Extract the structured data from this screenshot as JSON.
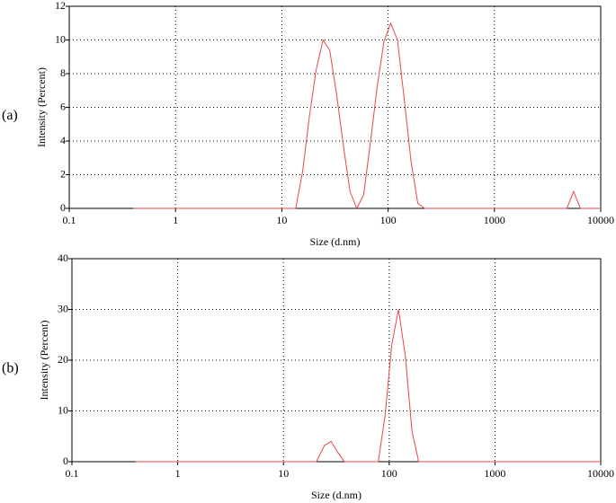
{
  "chart_data": [
    {
      "type": "line",
      "panel_label": "(a)",
      "x_label": "Size (d.nm)",
      "y_label": "Intensity (Percent)",
      "x": [
        0.4,
        10,
        13.5,
        15.7,
        18.2,
        21,
        24.4,
        28.2,
        32.7,
        37.8,
        43.8,
        50.7,
        58.8,
        68.1,
        78.8,
        91.3,
        105.7,
        122.4,
        141.8,
        164.2,
        190.1,
        220.2,
        1000,
        4801,
        5560,
        6439,
        10000
      ],
      "values": [
        0,
        0,
        0,
        2.2,
        5.5,
        8.2,
        10.0,
        9.4,
        6.8,
        3.8,
        1.0,
        0,
        0.8,
        3.9,
        7.2,
        9.9,
        11.0,
        10.0,
        6.5,
        2.8,
        0.3,
        0,
        0,
        0,
        1.0,
        0,
        0
      ],
      "color": "#e8474a",
      "x_log": true,
      "xlim": [
        0.1,
        10000
      ],
      "xticks": [
        0.1,
        1,
        10,
        100,
        1000,
        10000
      ],
      "ylim": [
        0,
        12
      ],
      "yticks": [
        0,
        2,
        4,
        6,
        8,
        10,
        12
      ],
      "grid": true
    },
    {
      "type": "line",
      "panel_label": "(b)",
      "x_label": "Size (d.nm)",
      "y_label": "Intensity (Percent)",
      "x": [
        0.4,
        20.5,
        24.4,
        28.2,
        32.7,
        37.8,
        78.8,
        91.3,
        105.7,
        122.4,
        141.8,
        164.2,
        190.1,
        10000
      ],
      "values": [
        0,
        0,
        3.2,
        4.0,
        1.8,
        0,
        0,
        9,
        23,
        30,
        21,
        6,
        0,
        0
      ],
      "color": "#e8474a",
      "x_log": true,
      "xlim": [
        0.1,
        10000
      ],
      "xticks": [
        0.1,
        1,
        10,
        100,
        1000,
        10000
      ],
      "ylim": [
        0,
        40
      ],
      "yticks": [
        0,
        10,
        20,
        30,
        40
      ],
      "grid": true
    }
  ]
}
